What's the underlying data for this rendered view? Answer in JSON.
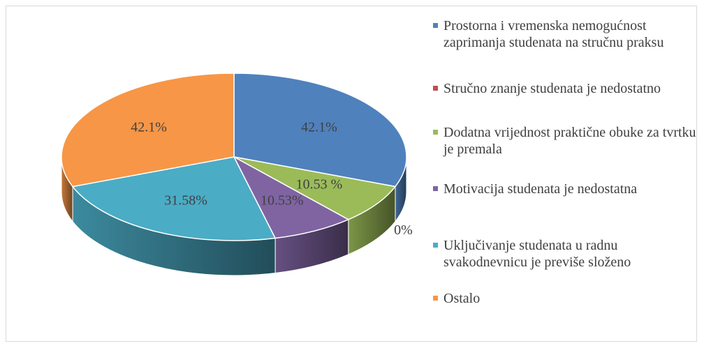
{
  "chart_data": {
    "type": "pie",
    "3d": true,
    "categories": [
      "Prostorna i vremenska nemogućnost zaprimanja studenata na stručnu praksu",
      "Stručno znanje studenata je nedostatno",
      "Dodatna vrijednost praktične obuke za tvrtku je premala",
      "Motivacija studenata je nedostatna",
      "Uključivanje studenata u radnu svakodnevnicu je previše složeno",
      "Ostalo"
    ],
    "values": [
      42.1,
      0,
      10.53,
      10.53,
      31.58,
      42.1
    ],
    "value_labels": [
      "42.1%",
      "0%",
      "10.53 %",
      "10.53%",
      "31.58%",
      "42.1%"
    ],
    "colors": [
      "#4f81bd",
      "#c0504d",
      "#9bbb59",
      "#8064a2",
      "#4bacc6",
      "#f79646"
    ],
    "legend": "right"
  }
}
